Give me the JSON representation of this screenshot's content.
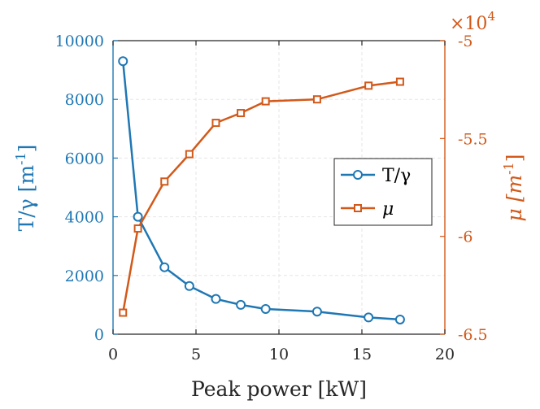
{
  "chart_data": {
    "type": "line",
    "title": "",
    "xlabel": "Peak power [kW]",
    "xlim": [
      0,
      20
    ],
    "xticks": [
      "0",
      "5",
      "10",
      "15",
      "20"
    ],
    "grid": true,
    "legend_position": "center-right",
    "y_left": {
      "label_main": "T/γ [m",
      "label_exp": "-1",
      "label_close": "]",
      "color": "#1f77b4",
      "ylim": [
        0,
        10000
      ],
      "ticks": [
        "0",
        "2000",
        "4000",
        "6000",
        "8000",
        "10000"
      ]
    },
    "y_right": {
      "label_main": "μ [m",
      "label_exp": "-1",
      "label_close": "]",
      "color": "#d2591a",
      "ylim": [
        -6.5,
        -5
      ],
      "ticks": [
        "-6.5",
        "-6",
        "-5.5",
        "-5"
      ],
      "multiplier_base": "×10",
      "multiplier_exp": "4"
    },
    "series": [
      {
        "name": "T/γ",
        "axis": "left",
        "marker": "circle",
        "color": "#1f77b4",
        "x": [
          0.6,
          1.5,
          3.1,
          4.6,
          6.2,
          7.7,
          9.2,
          12.3,
          15.4,
          17.3
        ],
        "y": [
          9300,
          4000,
          2280,
          1640,
          1200,
          1000,
          860,
          770,
          570,
          500
        ]
      },
      {
        "name": "μ",
        "axis": "right",
        "marker": "square",
        "color": "#d2591a",
        "x": [
          0.6,
          1.5,
          3.1,
          4.6,
          6.2,
          7.7,
          9.2,
          12.3,
          15.4,
          17.3
        ],
        "y": [
          -6.39,
          -5.96,
          -5.72,
          -5.58,
          -5.42,
          -5.37,
          -5.31,
          -5.3,
          -5.23,
          -5.21
        ]
      }
    ]
  }
}
